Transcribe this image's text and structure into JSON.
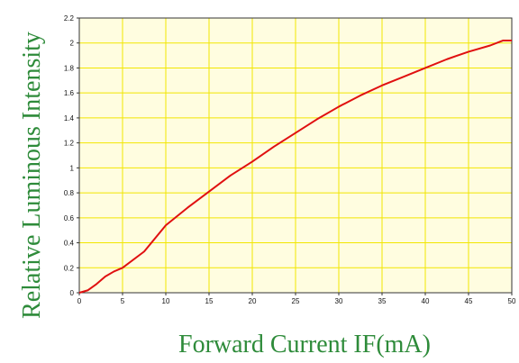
{
  "chart_data": {
    "type": "line",
    "title": "",
    "xlabel": "Forward Current IF(mA)",
    "ylabel": "Relative Luminous Intensity",
    "xlim": [
      0,
      50
    ],
    "ylim": [
      0,
      2.2
    ],
    "x_ticks": [
      "0",
      "5",
      "10",
      "15",
      "20",
      "25",
      "30",
      "35",
      "40",
      "45",
      "50"
    ],
    "y_ticks": [
      "0",
      "0.2",
      "0.4",
      "0.6",
      "0.8",
      "1",
      "1.2",
      "1.4",
      "1.6",
      "1.8",
      "2",
      "2.2"
    ],
    "grid": true,
    "grid_color": "#f2e600",
    "plot_background": "#fffde0",
    "line_color": "#e01010",
    "label_color": "#2e8b3a",
    "series": [
      {
        "x": [
          0,
          1,
          2,
          3,
          4,
          5,
          7.5,
          10,
          12.5,
          15,
          17.5,
          20,
          22.5,
          25,
          27.5,
          30,
          32.5,
          35,
          37.5,
          40,
          42.5,
          45,
          47.5,
          49,
          50
        ],
        "y": [
          0,
          0.02,
          0.07,
          0.13,
          0.17,
          0.2,
          0.33,
          0.54,
          0.68,
          0.81,
          0.94,
          1.05,
          1.17,
          1.28,
          1.39,
          1.49,
          1.58,
          1.66,
          1.73,
          1.8,
          1.87,
          1.93,
          1.98,
          2.02,
          2.02
        ]
      }
    ]
  }
}
